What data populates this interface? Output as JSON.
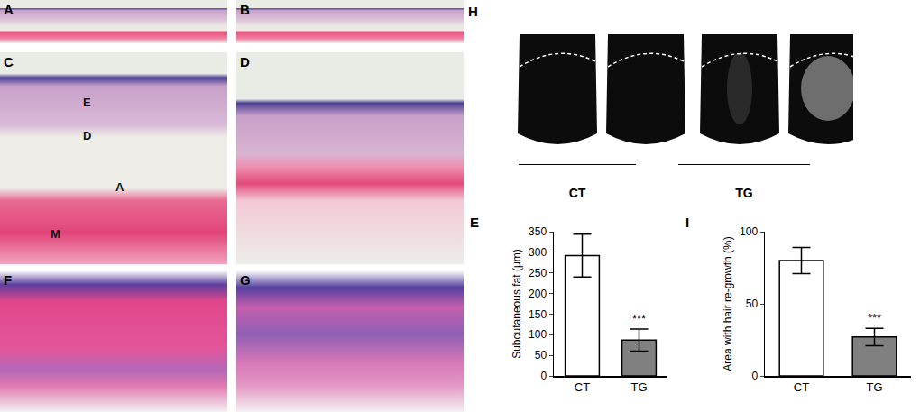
{
  "chart_data": [
    {
      "type": "bar",
      "panel": "E",
      "y_label": "Subcutaneous fat (μm)",
      "categories": [
        "CT",
        "TG"
      ],
      "values": [
        292,
        87
      ],
      "errors": [
        52,
        27
      ],
      "colors": [
        "#ffffff",
        "#808080"
      ],
      "ylim": [
        0,
        350
      ],
      "yticks": [
        0,
        50,
        100,
        150,
        200,
        250,
        300,
        350
      ],
      "grid": false,
      "annotations": [
        {
          "category": "TG",
          "text": "***"
        }
      ]
    },
    {
      "type": "bar",
      "panel": "I",
      "y_label": "Area with hair re-growth (%)",
      "categories": [
        "CT",
        "TG"
      ],
      "values": [
        80,
        27
      ],
      "errors": [
        9,
        6
      ],
      "colors": [
        "#ffffff",
        "#808080"
      ],
      "ylim": [
        0,
        100
      ],
      "yticks": [
        0,
        50,
        100
      ],
      "grid": false,
      "annotations": [
        {
          "category": "TG",
          "text": "***"
        }
      ]
    }
  ],
  "image_panels": [
    "A",
    "B",
    "C",
    "D",
    "F",
    "G",
    "H"
  ],
  "panel_C_layers": [
    "E",
    "D",
    "A",
    "M"
  ],
  "panel_H_groups": [
    "CT",
    "TG"
  ]
}
